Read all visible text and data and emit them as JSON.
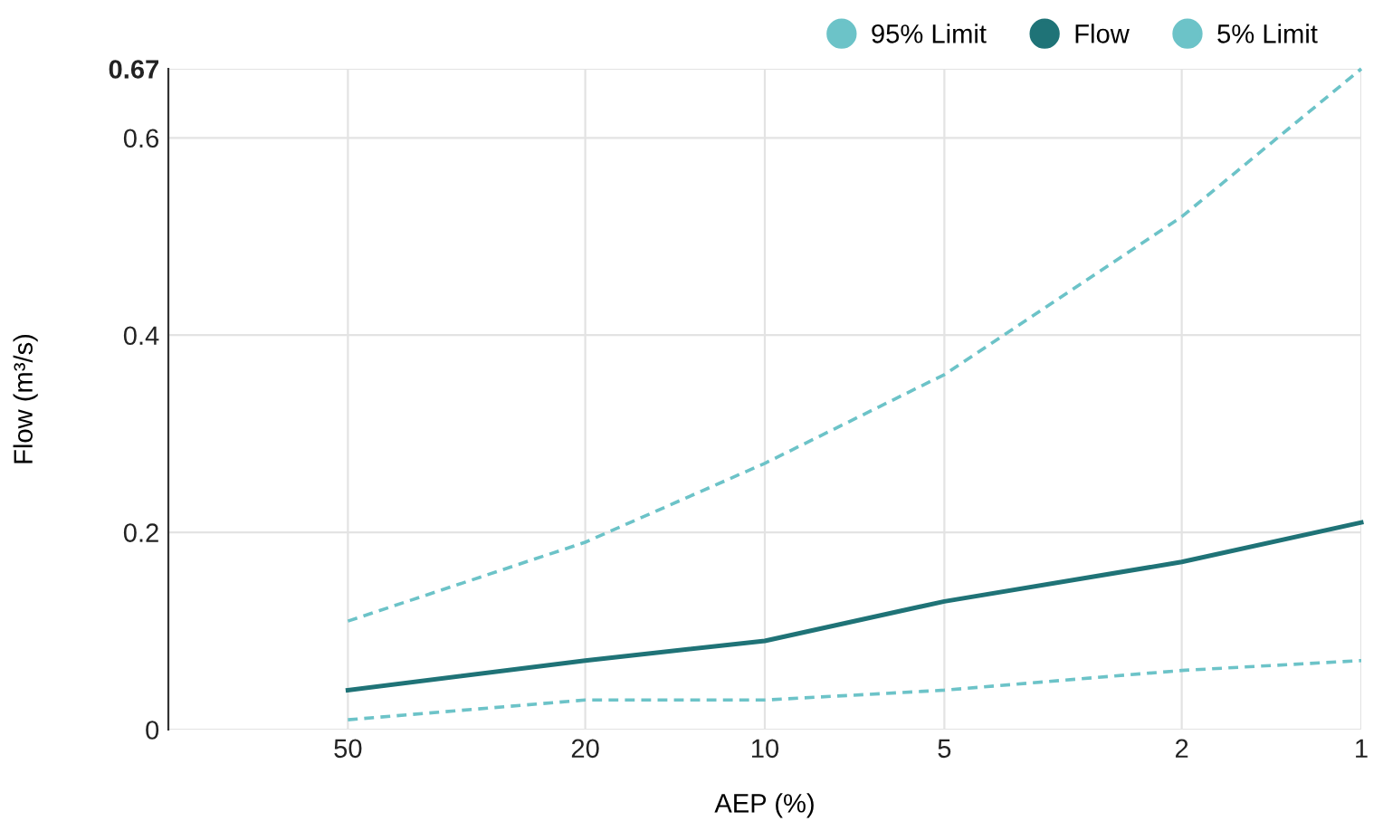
{
  "chart_data": {
    "type": "line",
    "xlabel": "AEP (%)",
    "ylabel": "Flow (m³/s)",
    "log": "x",
    "x": [
      50,
      20,
      10,
      5,
      2,
      1
    ],
    "xlim": [
      100,
      1
    ],
    "xticks": [
      50,
      20,
      10,
      5,
      2,
      1
    ],
    "ylim": [
      0,
      0.67
    ],
    "yticks": [
      0,
      0.2,
      0.4,
      0.6,
      0.67
    ],
    "grid": true,
    "legend": "top right",
    "marker": "none",
    "series": [
      {
        "name": "95% Limit",
        "color": "#6cc3c8",
        "line_style": "dashed",
        "values": [
          0.11,
          0.19,
          0.27,
          0.36,
          0.52,
          0.67
        ]
      },
      {
        "name": "Flow",
        "color": "#1f7377",
        "line_style": "solid",
        "values": [
          0.04,
          0.07,
          0.09,
          0.13,
          0.17,
          0.21
        ]
      },
      {
        "name": "5% Limit",
        "color": "#6cc3c8",
        "line_style": "dashed",
        "values": [
          0.01,
          0.03,
          0.03,
          0.04,
          0.06,
          0.07
        ]
      }
    ]
  }
}
